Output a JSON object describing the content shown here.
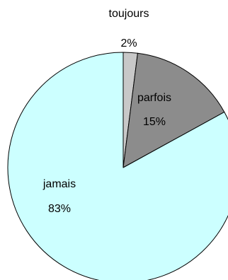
{
  "chart_data": {
    "type": "pie",
    "slices": [
      {
        "label": "toujours",
        "value": 2,
        "percent_label": "2%",
        "color": "#c8c8c8"
      },
      {
        "label": "parfois",
        "value": 15,
        "percent_label": "15%",
        "color": "#8c8c8c"
      },
      {
        "label": "jamais",
        "value": 83,
        "percent_label": "83%",
        "color": "#ccffff"
      }
    ],
    "start_angle": "12 o'clock",
    "direction": "clockwise",
    "legend": "none",
    "stroke_color": "#000000"
  }
}
